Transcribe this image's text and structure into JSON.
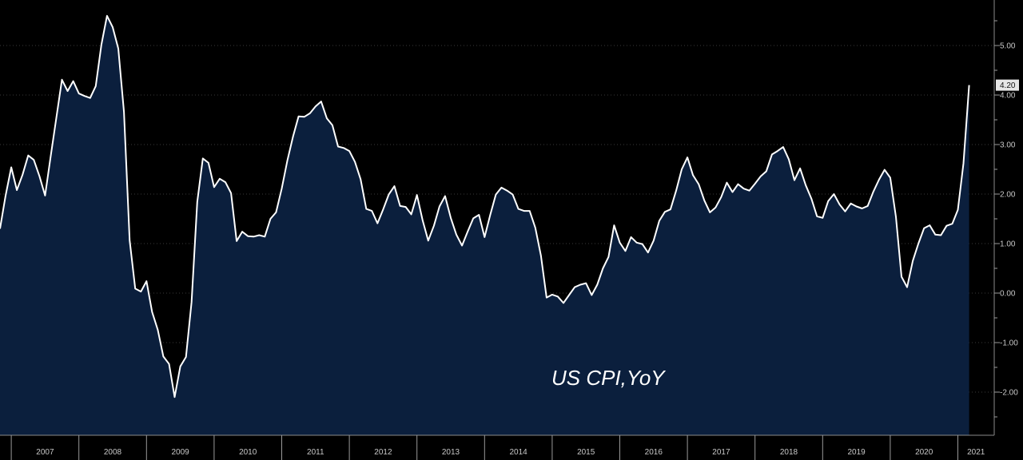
{
  "chart_data": {
    "type": "area",
    "title": "",
    "annotation": "US CPI,YoY",
    "xlabel": "",
    "ylabel": "",
    "x_start": "2006-11",
    "frequency": "monthly",
    "ylim": [
      -2.8,
      5.9
    ],
    "yticks": [
      "5.00",
      "4.00",
      "3.00",
      "2.00",
      "1.00",
      "0.00",
      "-1.00",
      "-2.00"
    ],
    "ytick_values": [
      5,
      4,
      3,
      2,
      1,
      0,
      -1,
      -2
    ],
    "xticks": [
      "2007",
      "2008",
      "2009",
      "2010",
      "2011",
      "2012",
      "2013",
      "2014",
      "2015",
      "2016",
      "2017",
      "2018",
      "2019",
      "2020",
      "2021"
    ],
    "last_value_label": "4.20",
    "grid": true,
    "colors": {
      "line": "#ffffff",
      "fill": "#0b1f3d",
      "background": "#000000",
      "label_bg": "#e6e6e6"
    },
    "series": [
      {
        "values": [
          1.3,
          1.97,
          2.54,
          2.08,
          2.39,
          2.78,
          2.69,
          2.36,
          1.97,
          2.76,
          3.54,
          4.31,
          4.08,
          4.28,
          4.03,
          3.98,
          3.94,
          4.18,
          5.02,
          5.6,
          5.37,
          4.94,
          3.66,
          1.07,
          0.09,
          0.03,
          0.24,
          -0.38,
          -0.74,
          -1.28,
          -1.43,
          -2.1,
          -1.48,
          -1.29,
          -0.18,
          1.84,
          2.72,
          2.63,
          2.14,
          2.31,
          2.24,
          2.02,
          1.05,
          1.24,
          1.15,
          1.14,
          1.17,
          1.14,
          1.5,
          1.63,
          2.11,
          2.68,
          3.16,
          3.57,
          3.56,
          3.63,
          3.77,
          3.87,
          3.53,
          3.39,
          2.96,
          2.93,
          2.87,
          2.65,
          2.3,
          1.7,
          1.66,
          1.41,
          1.69,
          1.99,
          2.16,
          1.76,
          1.74,
          1.59,
          1.98,
          1.47,
          1.06,
          1.36,
          1.75,
          1.96,
          1.52,
          1.18,
          0.96,
          1.24,
          1.51,
          1.58,
          1.13,
          1.58,
          1.99,
          2.13,
          2.07,
          1.99,
          1.7,
          1.66,
          1.66,
          1.32,
          0.76,
          -0.09,
          -0.03,
          -0.07,
          -0.2,
          -0.04,
          0.12,
          0.17,
          0.2,
          -0.04,
          0.17,
          0.5,
          0.73,
          1.37,
          1.02,
          0.85,
          1.13,
          1.02,
          0.99,
          0.82,
          1.06,
          1.46,
          1.64,
          1.69,
          2.07,
          2.5,
          2.74,
          2.38,
          2.2,
          1.87,
          1.63,
          1.73,
          1.94,
          2.23,
          2.04,
          2.2,
          2.11,
          2.07,
          2.21,
          2.36,
          2.46,
          2.8,
          2.87,
          2.95,
          2.7,
          2.28,
          2.52,
          2.18,
          1.91,
          1.55,
          1.52,
          1.86,
          2.0,
          1.79,
          1.65,
          1.81,
          1.75,
          1.71,
          1.76,
          2.05,
          2.29,
          2.49,
          2.33,
          1.54,
          0.33,
          0.12,
          0.65,
          1.0,
          1.31,
          1.37,
          1.18,
          1.17,
          1.36,
          1.4,
          1.68,
          2.62,
          4.2
        ]
      }
    ]
  }
}
